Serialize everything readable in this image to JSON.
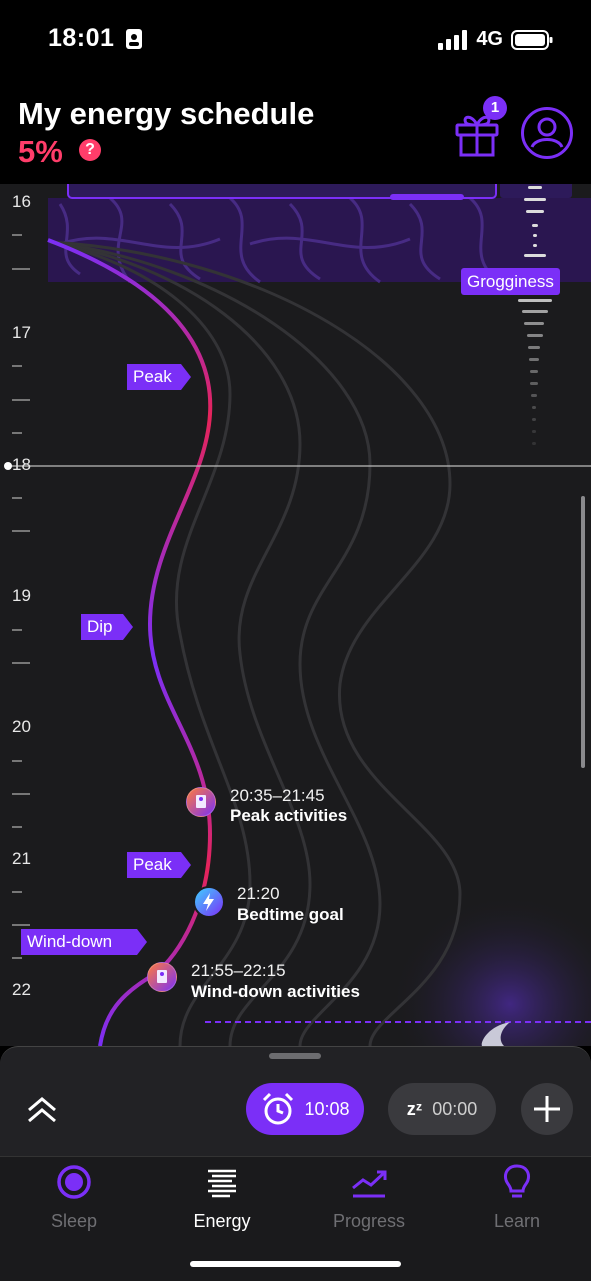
{
  "status_bar": {
    "time": "18:01",
    "network": "4G"
  },
  "header": {
    "title": "My energy schedule",
    "percent": "5%",
    "help_symbol": "?",
    "gift_badge": "1"
  },
  "chart": {
    "hours": [
      "16",
      "17",
      "18",
      "19",
      "20",
      "21",
      "22"
    ],
    "current_time_hour": "18",
    "labels": {
      "peak_1": "Peak",
      "dip": "Dip",
      "peak_2": "Peak",
      "wind_down": "Wind-down",
      "grogginess": "Grogginess"
    },
    "events": [
      {
        "time": "20:35–21:45",
        "title": "Peak activities"
      },
      {
        "time": "21:20",
        "title": "Bedtime goal"
      },
      {
        "time": "21:55–22:15",
        "title": "Wind-down activities"
      }
    ]
  },
  "controls": {
    "alarm_time": "10:08",
    "sleep_symbol": "zᶻ",
    "sleep_time": "00:00"
  },
  "tabs": [
    {
      "label": "Sleep",
      "icon": "sleep-ring-icon"
    },
    {
      "label": "Energy",
      "icon": "energy-lines-icon"
    },
    {
      "label": "Progress",
      "icon": "progress-trend-icon"
    },
    {
      "label": "Learn",
      "icon": "lightbulb-icon"
    }
  ],
  "colors": {
    "accent": "#7b2ff7",
    "alert": "#ff3d6a",
    "curve_gradient": [
      "#7b2ff7",
      "#e6245a"
    ]
  }
}
